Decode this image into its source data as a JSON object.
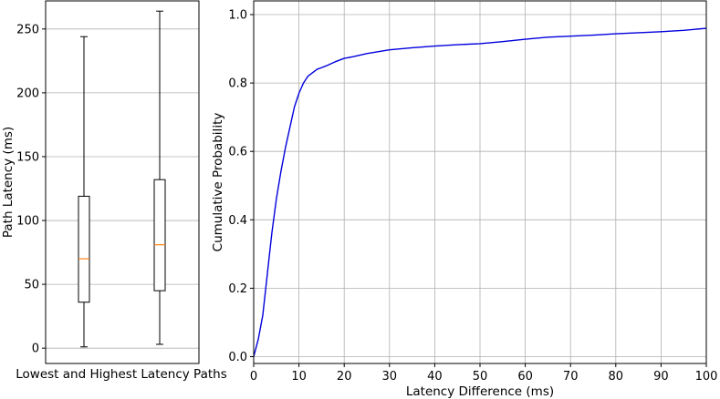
{
  "chart_data": [
    {
      "type": "box",
      "xlabel": "Lowest and Highest Latency Paths",
      "ylabel": "Path Latency (ms)",
      "ylim": [
        -12,
        272
      ],
      "yticks": [
        0,
        50,
        100,
        150,
        200,
        250
      ],
      "grid": "horizontal",
      "boxes": [
        {
          "whisker_low": 1,
          "q1": 36,
          "median": 70,
          "q3": 119,
          "whisker_high": 244
        },
        {
          "whisker_low": 3,
          "q1": 45,
          "median": 81,
          "q3": 132,
          "whisker_high": 264
        }
      ],
      "colors": {
        "box": "#000000",
        "median": "#ff7f0e"
      }
    },
    {
      "type": "line",
      "xlabel": "Latency Difference (ms)",
      "ylabel": "Cumulative Probability",
      "xlim": [
        0,
        100
      ],
      "ylim": [
        -0.02,
        1.04
      ],
      "xticks": [
        0,
        10,
        20,
        30,
        40,
        50,
        60,
        70,
        80,
        90,
        100
      ],
      "yticks": [
        "0.0",
        "0.2",
        "0.4",
        "0.6",
        "0.8",
        "1.0"
      ],
      "grid": "both",
      "series": [
        {
          "color": "#0000dd",
          "x": [
            0,
            1,
            2,
            3,
            4,
            5,
            6,
            7,
            8,
            9,
            10,
            11,
            12,
            13,
            14,
            15,
            16,
            18,
            20,
            22,
            25,
            30,
            35,
            40,
            45,
            50,
            55,
            60,
            65,
            70,
            75,
            80,
            85,
            90,
            95,
            100
          ],
          "y": [
            0.0,
            0.05,
            0.12,
            0.24,
            0.36,
            0.46,
            0.54,
            0.61,
            0.67,
            0.73,
            0.77,
            0.8,
            0.82,
            0.83,
            0.84,
            0.845,
            0.85,
            0.862,
            0.872,
            0.877,
            0.886,
            0.897,
            0.903,
            0.908,
            0.912,
            0.915,
            0.921,
            0.928,
            0.934,
            0.937,
            0.94,
            0.944,
            0.947,
            0.95,
            0.954,
            0.96
          ]
        }
      ]
    }
  ]
}
